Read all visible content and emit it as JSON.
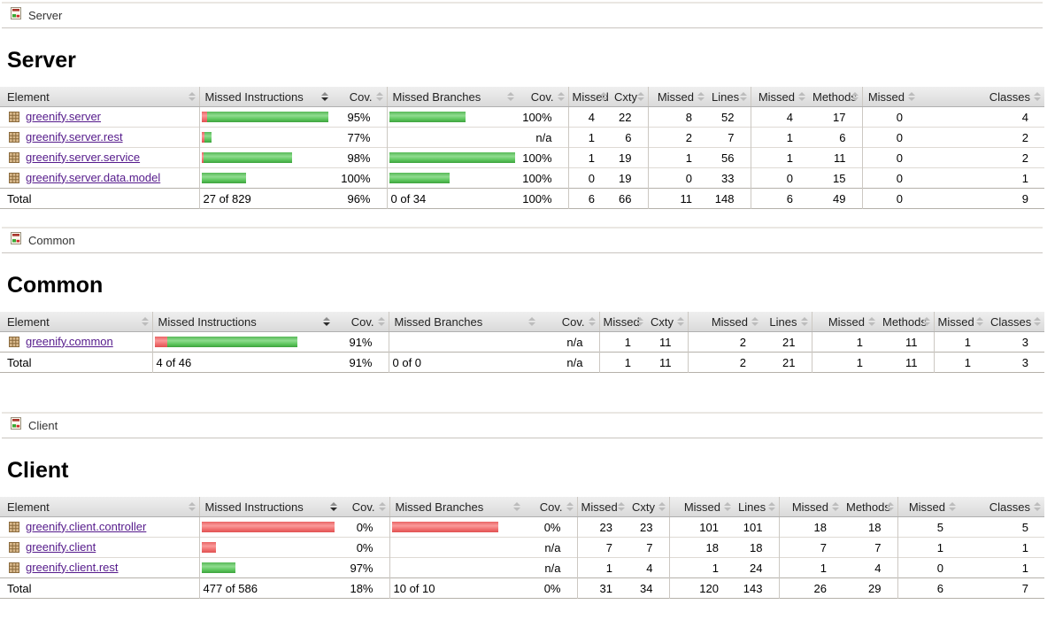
{
  "colors": {
    "bar_green": "#52c152",
    "bar_red": "#f07070",
    "link_purple": "#551a8b",
    "header_bg": "#e4e4e4"
  },
  "sort_state": {
    "column": "Missed Instructions",
    "direction": "desc"
  },
  "columns": {
    "element": "Element",
    "missed_instructions": "Missed Instructions",
    "cov": "Cov.",
    "missed_branches": "Missed Branches",
    "missed": "Missed",
    "cxty": "Cxty",
    "lines": "Lines",
    "methods": "Methods",
    "classes": "Classes"
  },
  "sections": [
    {
      "breadcrumb": "Server",
      "title": "Server",
      "rows": [
        {
          "name": "greenify.server",
          "instr_red": 6,
          "instr_green": 137,
          "instr_cov": "95%",
          "branch_red": 0,
          "branch_green": 86,
          "branch_cov": "100%",
          "missed_cxty": "4",
          "cxty": "22",
          "missed_lines": "8",
          "lines": "52",
          "missed_methods": "4",
          "methods": "17",
          "missed_classes": "0",
          "classes": "4"
        },
        {
          "name": "greenify.server.rest",
          "instr_red": 3,
          "instr_green": 8,
          "instr_cov": "77%",
          "branch_red": 0,
          "branch_green": 0,
          "branch_cov": "n/a",
          "missed_cxty": "1",
          "cxty": "6",
          "missed_lines": "2",
          "lines": "7",
          "missed_methods": "1",
          "methods": "6",
          "missed_classes": "0",
          "classes": "2"
        },
        {
          "name": "greenify.server.service",
          "instr_red": 2,
          "instr_green": 100,
          "instr_cov": "98%",
          "branch_red": 0,
          "branch_green": 142,
          "branch_cov": "100%",
          "missed_cxty": "1",
          "cxty": "19",
          "missed_lines": "1",
          "lines": "56",
          "missed_methods": "1",
          "methods": "11",
          "missed_classes": "0",
          "classes": "2"
        },
        {
          "name": "greenify.server.data.model",
          "instr_red": 0,
          "instr_green": 50,
          "instr_cov": "100%",
          "branch_red": 0,
          "branch_green": 68,
          "branch_cov": "100%",
          "missed_cxty": "0",
          "cxty": "19",
          "missed_lines": "0",
          "lines": "33",
          "missed_methods": "0",
          "methods": "15",
          "missed_classes": "0",
          "classes": "1"
        }
      ],
      "total": {
        "label": "Total",
        "instr": "27 of 829",
        "instr_cov": "96%",
        "branch": "0 of 34",
        "branch_cov": "100%",
        "missed_cxty": "6",
        "cxty": "66",
        "missed_lines": "11",
        "lines": "148",
        "missed_methods": "6",
        "methods": "49",
        "missed_classes": "0",
        "classes": "9"
      }
    },
    {
      "breadcrumb": "Common",
      "title": "Common",
      "rows": [
        {
          "name": "greenify.common",
          "instr_red": 14,
          "instr_green": 147,
          "instr_cov": "91%",
          "branch_red": 0,
          "branch_green": 0,
          "branch_cov": "n/a",
          "missed_cxty": "1",
          "cxty": "11",
          "missed_lines": "2",
          "lines": "21",
          "missed_methods": "1",
          "methods": "11",
          "missed_classes": "1",
          "classes": "3"
        }
      ],
      "total": {
        "label": "Total",
        "instr": "4 of 46",
        "instr_cov": "91%",
        "branch": "0 of 0",
        "branch_cov": "n/a",
        "missed_cxty": "1",
        "cxty": "11",
        "missed_lines": "2",
        "lines": "21",
        "missed_methods": "1",
        "methods": "11",
        "missed_classes": "1",
        "classes": "3"
      }
    },
    {
      "breadcrumb": "Client",
      "title": "Client",
      "rows": [
        {
          "name": "greenify.client.controller",
          "instr_red": 150,
          "instr_green": 0,
          "instr_cov": "0%",
          "branch_red": 120,
          "branch_green": 0,
          "branch_cov": "0%",
          "missed_cxty": "23",
          "cxty": "23",
          "missed_lines": "101",
          "lines": "101",
          "missed_methods": "18",
          "methods": "18",
          "missed_classes": "5",
          "classes": "5"
        },
        {
          "name": "greenify.client",
          "instr_red": 16,
          "instr_green": 0,
          "instr_cov": "0%",
          "branch_red": 0,
          "branch_green": 0,
          "branch_cov": "n/a",
          "missed_cxty": "7",
          "cxty": "7",
          "missed_lines": "18",
          "lines": "18",
          "missed_methods": "7",
          "methods": "7",
          "missed_classes": "1",
          "classes": "1"
        },
        {
          "name": "greenify.client.rest",
          "instr_red": 0,
          "instr_green": 38,
          "instr_cov": "97%",
          "branch_red": 0,
          "branch_green": 0,
          "branch_cov": "n/a",
          "missed_cxty": "1",
          "cxty": "4",
          "missed_lines": "1",
          "lines": "24",
          "missed_methods": "1",
          "methods": "4",
          "missed_classes": "0",
          "classes": "1"
        }
      ],
      "total": {
        "label": "Total",
        "instr": "477 of 586",
        "instr_cov": "18%",
        "branch": "10 of 10",
        "branch_cov": "0%",
        "missed_cxty": "31",
        "cxty": "34",
        "missed_lines": "120",
        "lines": "143",
        "missed_methods": "26",
        "methods": "29",
        "missed_classes": "6",
        "classes": "7"
      }
    }
  ]
}
